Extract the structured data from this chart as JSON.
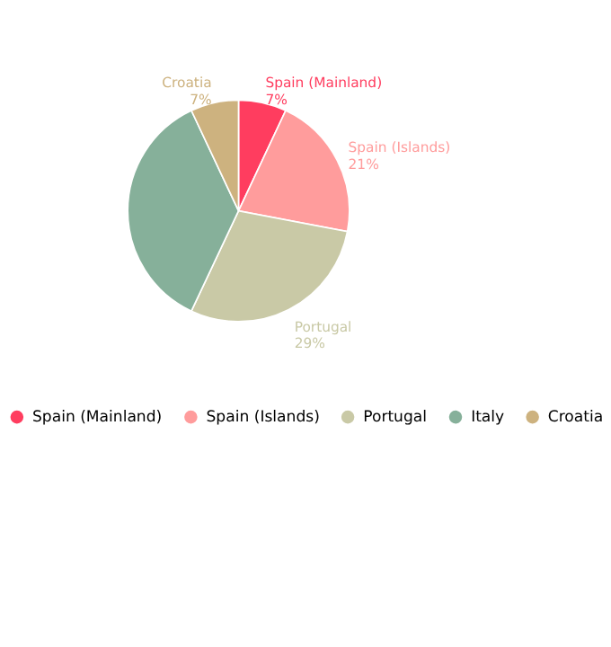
{
  "chart_data": {
    "type": "pie",
    "categories": [
      "Spain (Mainland)",
      "Spain (Islands)",
      "Portugal",
      "Italy",
      "Croatia"
    ],
    "values": [
      7,
      21,
      29,
      36,
      7
    ],
    "colors": [
      "#ff3d5f",
      "#ff9c9c",
      "#c9c9a6",
      "#86b09a",
      "#cdb27f"
    ],
    "value_labels": [
      "7%",
      "21%",
      "29%",
      null,
      "7%"
    ],
    "legend": "bottom"
  }
}
